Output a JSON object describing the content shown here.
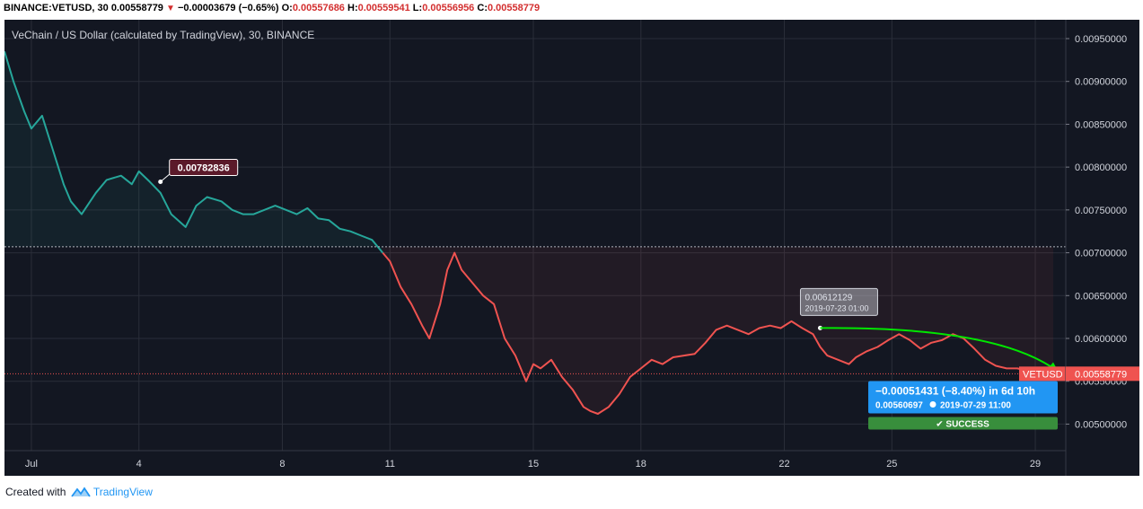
{
  "header": {
    "symbol": "BINANCE:VETUSD, 30",
    "last": "0.00558779",
    "change_arrow": "▼",
    "change": "−0.00003679 (−0.65%)",
    "o_label": "O:",
    "o_value": "0.00557686",
    "h_label": "H:",
    "h_value": "0.00559541",
    "l_label": "L:",
    "l_value": "0.00556956",
    "c_label": "C:",
    "c_value": "0.00558779"
  },
  "footer": {
    "created_with": "Created with",
    "brand": "TradingView",
    "logo_icon": "tradingview-logo-icon"
  },
  "colors": {
    "background": "#131722",
    "up": "#26a69a",
    "down": "#ef5350",
    "grid": "#2a2e39",
    "measure_blue": "#2196f3",
    "success_green": "#388e3c",
    "arrow_green": "#00e600",
    "annotation_bg": "#5b1a2a",
    "hover_box": "#b2b5be"
  },
  "chart_data": {
    "type": "line",
    "title": "VeChain / US Dollar (calculated by TradingView), 30, BINANCE",
    "xlabel": "",
    "ylabel": "",
    "x_ticks": [
      "Jul",
      "4",
      "8",
      "11",
      "15",
      "18",
      "22",
      "25",
      "29"
    ],
    "x_tick_days": [
      1,
      4,
      8,
      11,
      15,
      18,
      22,
      25,
      29
    ],
    "xlim_days": [
      0.25,
      29.85
    ],
    "y_ticks": [
      "0.00950000",
      "0.00900000",
      "0.00850000",
      "0.00800000",
      "0.00750000",
      "0.00700000",
      "0.00650000",
      "0.00600000",
      "0.00550000",
      "0.00500000"
    ],
    "ylim": [
      0.00469,
      0.00972
    ],
    "grid": true,
    "series": [
      {
        "x": [
          0.25,
          0.5,
          0.8,
          1.0,
          1.3,
          1.6,
          1.9,
          2.1,
          2.4,
          2.8,
          3.1,
          3.5,
          3.8,
          4.0,
          4.3,
          4.6,
          4.9,
          5.3,
          5.6,
          5.9,
          6.3,
          6.6,
          6.9,
          7.2,
          7.5,
          7.8,
          8.1,
          8.4,
          8.7,
          9.0,
          9.3,
          9.6,
          9.9,
          10.2,
          10.5,
          10.8,
          11.0,
          11.3,
          11.6,
          11.9,
          12.1,
          12.4,
          12.6,
          12.8,
          13.0,
          13.3,
          13.6,
          13.9,
          14.2,
          14.5,
          14.8,
          15.0,
          15.2,
          15.5,
          15.8,
          16.1,
          16.4,
          16.6,
          16.8,
          17.1,
          17.4,
          17.7,
          18.0,
          18.3,
          18.6,
          18.9,
          19.2,
          19.5,
          19.8,
          20.1,
          20.4,
          20.7,
          21.0,
          21.3,
          21.6,
          21.9,
          22.2,
          22.5,
          22.8,
          23.0,
          23.2,
          23.5,
          23.8,
          24.0,
          24.3,
          24.6,
          24.9,
          25.2,
          25.5,
          25.8,
          26.1,
          26.4,
          26.7,
          27.0,
          27.3,
          27.6,
          27.9,
          28.2,
          28.5,
          28.8,
          29.1,
          29.3,
          29.5
        ],
        "y": [
          0.00935,
          0.009,
          0.00865,
          0.00845,
          0.0086,
          0.0082,
          0.0078,
          0.0076,
          0.00745,
          0.0077,
          0.00785,
          0.0079,
          0.0078,
          0.00795,
          0.00783,
          0.0077,
          0.00745,
          0.0073,
          0.00755,
          0.00765,
          0.0076,
          0.0075,
          0.00745,
          0.00745,
          0.0075,
          0.00755,
          0.0075,
          0.00745,
          0.00752,
          0.0074,
          0.00738,
          0.00728,
          0.00725,
          0.0072,
          0.00715,
          0.007,
          0.0069,
          0.0066,
          0.0064,
          0.00615,
          0.006,
          0.0064,
          0.0068,
          0.007,
          0.0068,
          0.00665,
          0.0065,
          0.0064,
          0.006,
          0.0058,
          0.0055,
          0.0057,
          0.00565,
          0.00575,
          0.00555,
          0.0054,
          0.0052,
          0.00515,
          0.00512,
          0.0052,
          0.00535,
          0.00555,
          0.00565,
          0.00575,
          0.0057,
          0.00578,
          0.0058,
          0.00582,
          0.00595,
          0.0061,
          0.00615,
          0.0061,
          0.00605,
          0.00612,
          0.00615,
          0.00612,
          0.0062,
          0.00612,
          0.00605,
          0.0059,
          0.0058,
          0.00575,
          0.0057,
          0.00578,
          0.00585,
          0.0059,
          0.00598,
          0.00605,
          0.00598,
          0.00588,
          0.00595,
          0.00598,
          0.00605,
          0.006,
          0.00588,
          0.00575,
          0.00568,
          0.00565,
          0.00565,
          0.00562,
          0.0056,
          0.00559,
          0.00558779
        ]
      }
    ],
    "price_line": {
      "value": 0.00558779,
      "label": "VETUSD",
      "value_label": "0.00558779"
    },
    "reference_line": {
      "value": 0.00707
    },
    "annotations": [
      {
        "kind": "callout",
        "text": "0.00782836",
        "day": 4.6,
        "value": 0.00782836
      },
      {
        "kind": "hover",
        "value_text": "0.00612129",
        "date_text": "2019-07-23 01:00",
        "day": 23.0,
        "value": 0.00612129
      },
      {
        "kind": "measure",
        "line1": "−0.00051431 (−8.40%)  in 6d 10h",
        "line2a": "0.00560697",
        "line2b": "2019-07-29  11:00",
        "status": "✔ SUCCESS",
        "from_day": 23.0,
        "from_value": 0.00612129,
        "to_day": 29.65,
        "to_value": 0.00560697
      }
    ]
  }
}
